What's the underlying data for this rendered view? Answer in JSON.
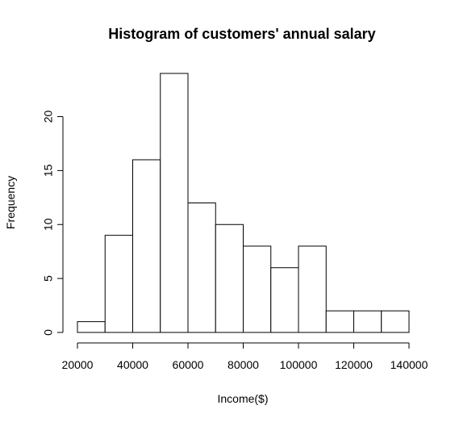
{
  "chart_data": {
    "type": "bar",
    "title": "Histogram of customers' annual salary",
    "xlabel": "Income($)",
    "ylabel": "Frequency",
    "bins": [
      [
        20000,
        30000
      ],
      [
        30000,
        40000
      ],
      [
        40000,
        50000
      ],
      [
        50000,
        60000
      ],
      [
        60000,
        70000
      ],
      [
        70000,
        80000
      ],
      [
        80000,
        90000
      ],
      [
        90000,
        100000
      ],
      [
        100000,
        110000
      ],
      [
        110000,
        120000
      ],
      [
        120000,
        130000
      ],
      [
        130000,
        140000
      ]
    ],
    "values": [
      1,
      9,
      16,
      24,
      12,
      10,
      8,
      6,
      8,
      2,
      2,
      2
    ],
    "xlim": [
      20000,
      140000
    ],
    "ylim": [
      0,
      24
    ],
    "x_ticks": [
      20000,
      40000,
      60000,
      80000,
      100000,
      120000,
      140000
    ],
    "y_ticks": [
      0,
      5,
      10,
      15,
      20
    ],
    "grid": false
  }
}
